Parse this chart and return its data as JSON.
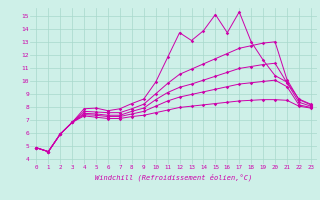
{
  "title": "",
  "xlabel": "Windchill (Refroidissement éolien,°C)",
  "bg_color": "#cef0e8",
  "grid_color": "#a8d8cc",
  "line_color": "#cc00aa",
  "x_ticks": [
    0,
    1,
    2,
    3,
    4,
    5,
    6,
    7,
    8,
    9,
    10,
    11,
    12,
    13,
    14,
    15,
    16,
    17,
    18,
    19,
    20,
    21,
    22,
    23
  ],
  "y_ticks": [
    4,
    5,
    6,
    7,
    8,
    9,
    10,
    11,
    12,
    13,
    14,
    15
  ],
  "ylim": [
    3.6,
    15.6
  ],
  "xlim": [
    -0.5,
    23.5
  ],
  "lines": [
    [
      4.85,
      4.55,
      5.9,
      6.8,
      7.85,
      7.9,
      7.7,
      7.85,
      8.25,
      8.6,
      9.9,
      11.8,
      13.7,
      13.1,
      13.85,
      15.1,
      13.7,
      15.3,
      13.0,
      11.6,
      10.4,
      9.9,
      8.6,
      8.2
    ],
    [
      4.85,
      4.55,
      5.9,
      6.8,
      7.65,
      7.6,
      7.55,
      7.55,
      7.85,
      8.2,
      9.0,
      9.8,
      10.5,
      10.9,
      11.3,
      11.7,
      12.1,
      12.5,
      12.7,
      12.9,
      13.0,
      10.1,
      8.55,
      8.15
    ],
    [
      4.85,
      4.55,
      5.9,
      6.8,
      7.5,
      7.45,
      7.35,
      7.35,
      7.65,
      7.9,
      8.55,
      9.1,
      9.5,
      9.75,
      10.05,
      10.35,
      10.65,
      10.95,
      11.1,
      11.25,
      11.35,
      9.85,
      8.35,
      8.05
    ],
    [
      4.85,
      4.55,
      5.9,
      6.8,
      7.4,
      7.35,
      7.25,
      7.25,
      7.45,
      7.65,
      8.05,
      8.45,
      8.75,
      8.95,
      9.15,
      9.35,
      9.55,
      9.75,
      9.85,
      9.95,
      10.05,
      9.55,
      8.15,
      7.95
    ],
    [
      4.85,
      4.55,
      5.9,
      6.8,
      7.3,
      7.2,
      7.1,
      7.1,
      7.25,
      7.35,
      7.55,
      7.75,
      7.95,
      8.05,
      8.15,
      8.25,
      8.35,
      8.45,
      8.5,
      8.55,
      8.55,
      8.5,
      8.05,
      7.9
    ]
  ]
}
